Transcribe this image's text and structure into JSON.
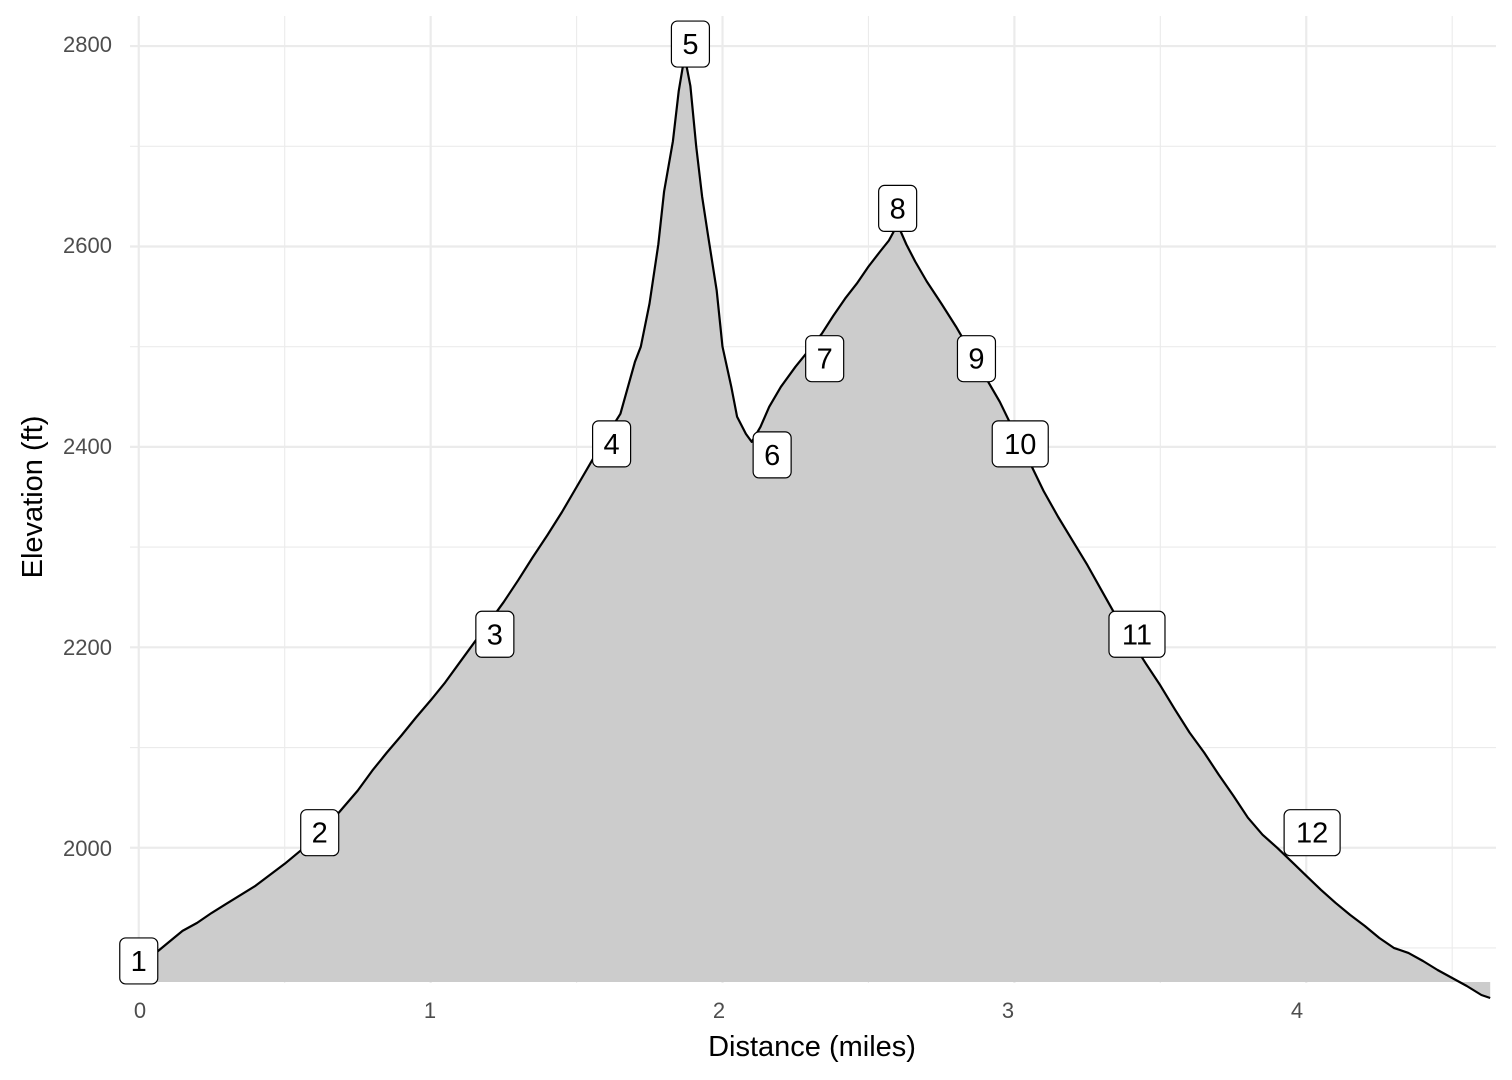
{
  "chart_data": {
    "type": "area",
    "title": "",
    "xlabel": "Distance (miles)",
    "ylabel": "Elevation (ft)",
    "xlim": [
      -0.03,
      4.65
    ],
    "ylim": [
      1865,
      2830
    ],
    "baseline": 1866,
    "x_ticks": [
      "0",
      "1",
      "2",
      "3",
      "4"
    ],
    "y_ticks": [
      "2000",
      "2200",
      "2400",
      "2600",
      "2800"
    ],
    "grid": true,
    "colors": {
      "fill": "#cccccc",
      "line": "#000000",
      "grid": "#ebebeb"
    },
    "x": [
      0.0,
      0.05,
      0.1,
      0.15,
      0.2,
      0.25,
      0.3,
      0.35,
      0.4,
      0.45,
      0.5,
      0.55,
      0.6,
      0.65,
      0.7,
      0.75,
      0.8,
      0.85,
      0.9,
      0.95,
      1.0,
      1.05,
      1.1,
      1.15,
      1.2,
      1.25,
      1.3,
      1.35,
      1.4,
      1.45,
      1.5,
      1.55,
      1.6,
      1.65,
      1.7,
      1.72,
      1.75,
      1.78,
      1.8,
      1.83,
      1.85,
      1.87,
      1.89,
      1.91,
      1.93,
      1.95,
      1.98,
      2.0,
      2.03,
      2.05,
      2.08,
      2.1,
      2.13,
      2.16,
      2.2,
      2.25,
      2.3,
      2.34,
      2.38,
      2.42,
      2.46,
      2.5,
      2.54,
      2.57,
      2.6,
      2.63,
      2.66,
      2.7,
      2.75,
      2.8,
      2.85,
      2.9,
      2.95,
      3.0,
      3.05,
      3.1,
      3.15,
      3.2,
      3.25,
      3.3,
      3.35,
      3.4,
      3.45,
      3.5,
      3.55,
      3.6,
      3.65,
      3.7,
      3.75,
      3.8,
      3.85,
      3.9,
      3.95,
      4.0,
      4.05,
      4.1,
      4.15,
      4.2,
      4.25,
      4.3,
      4.35,
      4.4,
      4.45,
      4.5,
      4.55,
      4.6,
      4.63
    ],
    "y": [
      1887,
      1893,
      1905,
      1917,
      1925,
      1935,
      1944,
      1953,
      1962,
      1973,
      1984,
      1996,
      2008,
      2023,
      2040,
      2057,
      2077,
      2095,
      2112,
      2130,
      2147,
      2165,
      2185,
      2205,
      2225,
      2245,
      2267,
      2290,
      2312,
      2335,
      2360,
      2385,
      2410,
      2433,
      2485,
      2500,
      2543,
      2602,
      2655,
      2705,
      2755,
      2790,
      2760,
      2700,
      2650,
      2612,
      2556,
      2500,
      2460,
      2430,
      2413,
      2405,
      2420,
      2440,
      2460,
      2480,
      2498,
      2513,
      2531,
      2548,
      2563,
      2580,
      2595,
      2606,
      2622,
      2602,
      2585,
      2565,
      2543,
      2520,
      2495,
      2470,
      2445,
      2415,
      2386,
      2356,
      2330,
      2306,
      2282,
      2256,
      2230,
      2207,
      2184,
      2162,
      2138,
      2115,
      2095,
      2073,
      2052,
      2030,
      2013,
      2000,
      1986,
      1972,
      1958,
      1945,
      1933,
      1922,
      1910,
      1900,
      1895,
      1887,
      1878,
      1870,
      1862,
      1853,
      1850
    ]
  },
  "waypoints": [
    {
      "label": "1",
      "x": 0.0,
      "y": 1887
    },
    {
      "label": "2",
      "x": 0.62,
      "y": 2015
    },
    {
      "label": "3",
      "x": 1.22,
      "y": 2213
    },
    {
      "label": "4",
      "x": 1.62,
      "y": 2403
    },
    {
      "label": "5",
      "x": 1.89,
      "y": 2802
    },
    {
      "label": "6",
      "x": 2.17,
      "y": 2392
    },
    {
      "label": "7",
      "x": 2.35,
      "y": 2488
    },
    {
      "label": "8",
      "x": 2.6,
      "y": 2638
    },
    {
      "label": "9",
      "x": 2.87,
      "y": 2488
    },
    {
      "label": "10",
      "x": 3.02,
      "y": 2403
    },
    {
      "label": "11",
      "x": 3.42,
      "y": 2213
    },
    {
      "label": "12",
      "x": 4.02,
      "y": 2015
    }
  ]
}
